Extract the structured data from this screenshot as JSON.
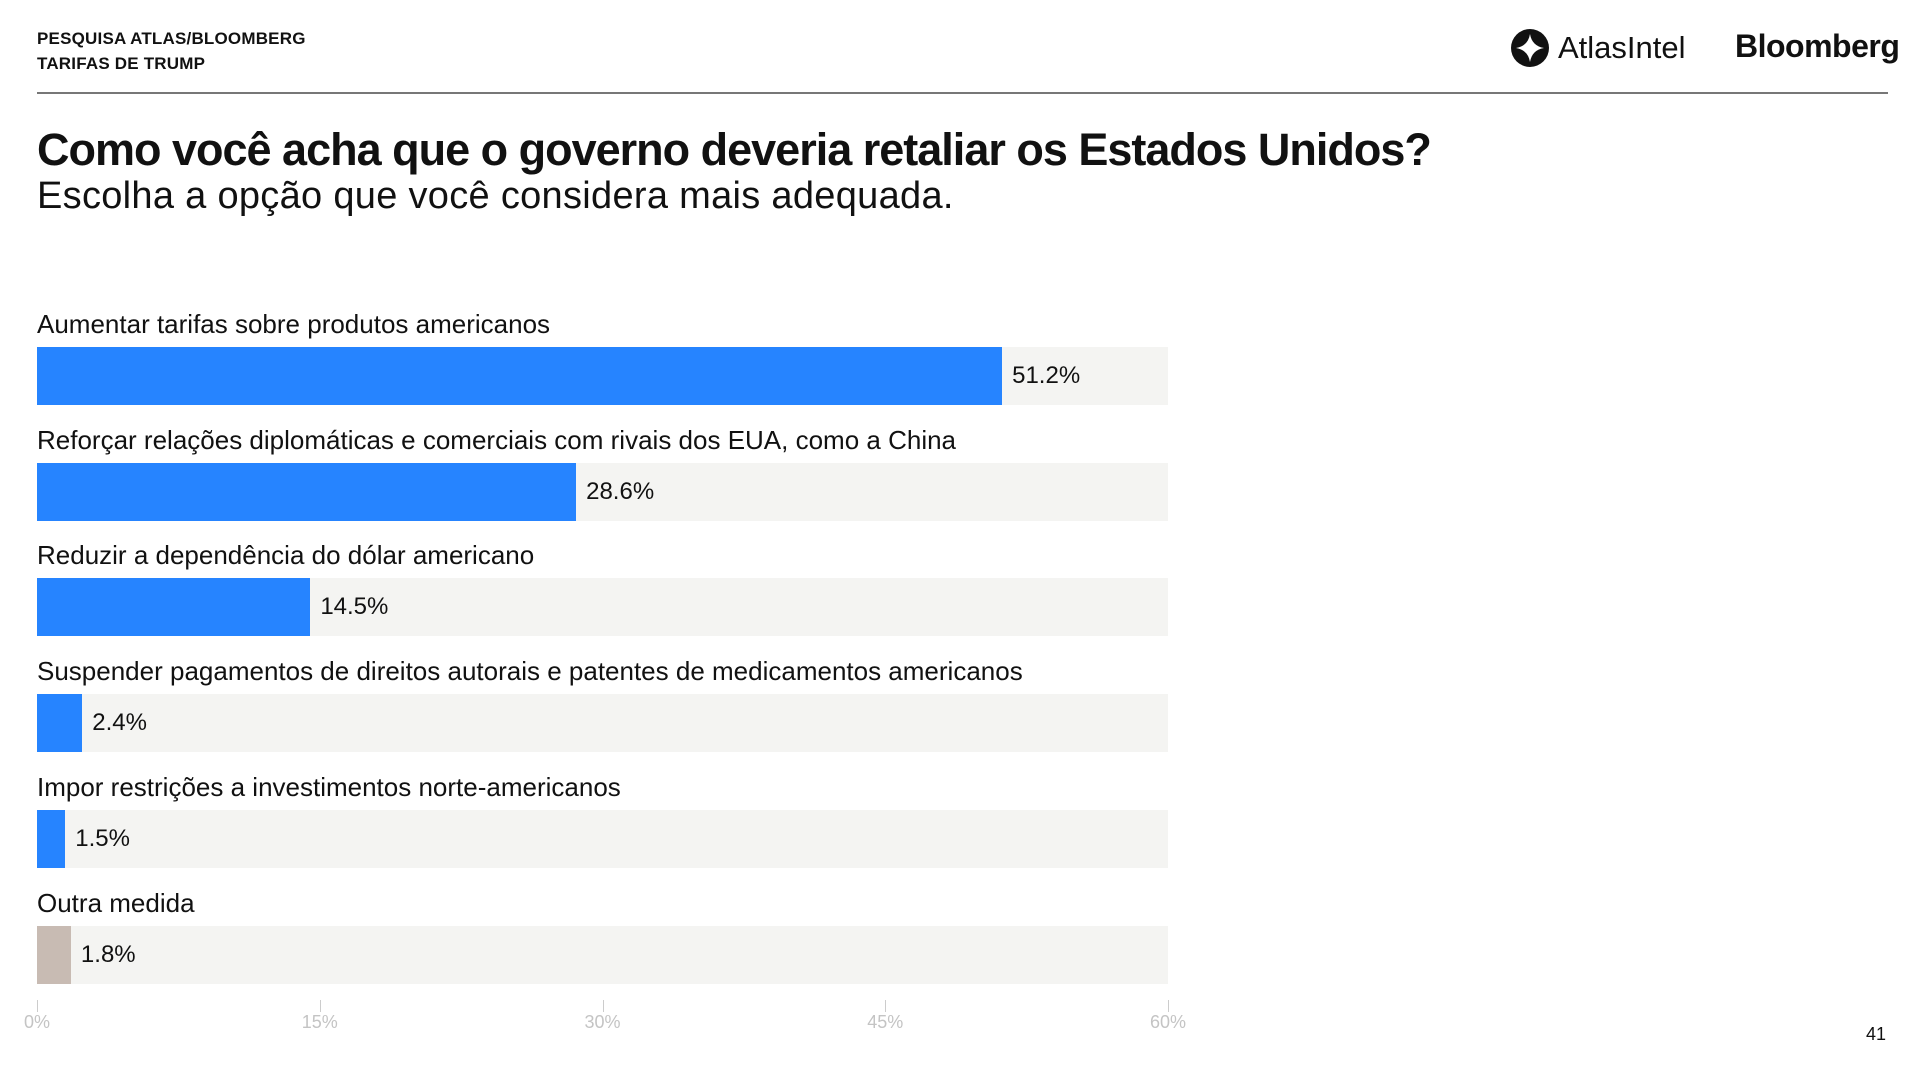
{
  "header": {
    "line1": "PESQUISA ATLAS/BLOOMBERG",
    "line2": "TARIFAS DE TRUMP",
    "logo_atlas": "AtlasIntel",
    "logo_bloomberg": "Bloomberg"
  },
  "page_number": "41",
  "chart_data": {
    "type": "bar",
    "orientation": "horizontal",
    "title": "Como você acha que o governo deveria retaliar os Estados Unidos?",
    "subtitle": "Escolha a opção que você considera mais adequada.",
    "categories": [
      "Aumentar tarifas sobre produtos americanos",
      "Reforçar relações diplomáticas e comerciais com rivais dos EUA, como a China",
      "Reduzir a dependência do dólar americano",
      "Suspender pagamentos de direitos autorais e patentes de medicamentos americanos",
      "Impor restrições a investimentos norte-americanos",
      "Outra medida"
    ],
    "values": [
      51.2,
      28.6,
      14.5,
      2.4,
      1.5,
      1.8
    ],
    "value_labels": [
      "51.2%",
      "28.6%",
      "14.5%",
      "2.4%",
      "1.5%",
      "1.8%"
    ],
    "colors": [
      "#2684ff",
      "#2684ff",
      "#2684ff",
      "#2684ff",
      "#2684ff",
      "#c8bbb3"
    ],
    "xlim": [
      0,
      60
    ],
    "xticks": [
      0,
      15,
      30,
      45,
      60
    ],
    "xtick_labels": [
      "0%",
      "15%",
      "30%",
      "45%",
      "60%"
    ],
    "xlabel": "",
    "ylabel": "",
    "grid": false
  }
}
